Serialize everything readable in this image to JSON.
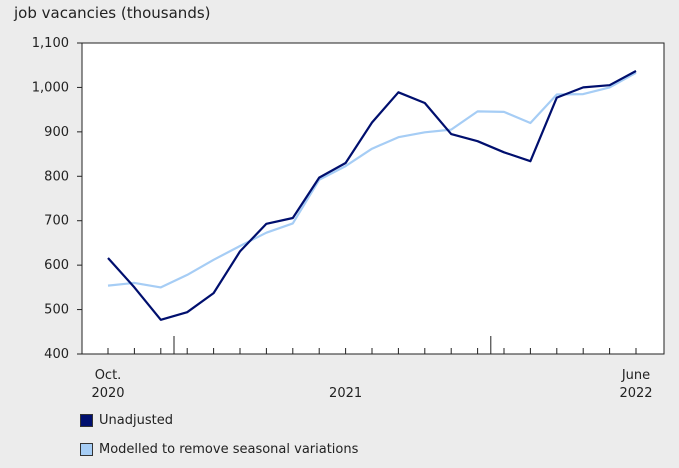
{
  "chart_data": {
    "type": "line",
    "ylabel": "job vacancies (thousands)",
    "ylim": [
      400,
      1100
    ],
    "yticks": [
      400,
      500,
      600,
      700,
      800,
      900,
      1000,
      1100
    ],
    "ytick_labels": [
      "400",
      "500",
      "600",
      "700",
      "800",
      "900",
      "1,000",
      "1,100"
    ],
    "x": [
      "2020-10",
      "2020-11",
      "2020-12",
      "2021-01",
      "2021-02",
      "2021-03",
      "2021-04",
      "2021-05",
      "2021-06",
      "2021-07",
      "2021-08",
      "2021-09",
      "2021-10",
      "2021-11",
      "2021-12",
      "2022-01",
      "2022-02",
      "2022-03",
      "2022-04",
      "2022-05",
      "2022-06"
    ],
    "xtick_labels": [
      {
        "index": 0,
        "lines": [
          "Oct.",
          "2020"
        ]
      },
      {
        "index": 9,
        "lines": [
          "",
          "2021"
        ]
      },
      {
        "index": 20,
        "lines": [
          "June",
          "2022"
        ]
      }
    ],
    "year_separators_after_index": [
      2,
      14
    ],
    "grid": false,
    "legend_placement": "bottom-left",
    "series": [
      {
        "name": "Unadjusted",
        "color": "#000f6e",
        "values": [
          616,
          550,
          477,
          494,
          537,
          631,
          693,
          706,
          797,
          830,
          921,
          989,
          965,
          895,
          879,
          854,
          834,
          977,
          1000,
          1005,
          1037
        ]
      },
      {
        "name": "Modelled to remove seasonal variations",
        "color": "#a6cdf5",
        "values": [
          554,
          560,
          550,
          578,
          612,
          643,
          673,
          694,
          792,
          823,
          862,
          888,
          899,
          905,
          946,
          945,
          920,
          984,
          985,
          1000,
          1033
        ]
      }
    ]
  }
}
